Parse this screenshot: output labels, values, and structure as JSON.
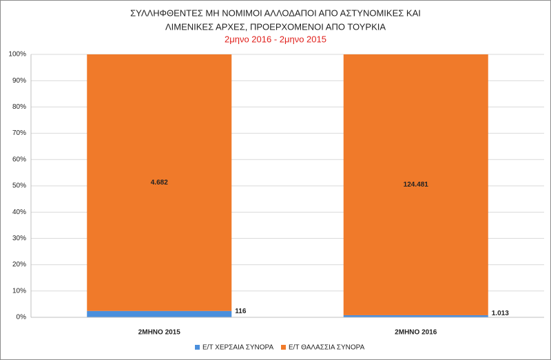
{
  "chart_data": {
    "type": "stacked_percent_bar",
    "title_lines": [
      "ΣΥΛΛΗΦΘΕΝΤΕΣ ΜΗ ΝΟΜΙΜΟΙ ΑΛΛΟΔΑΠΟΙ ΑΠΟ ΑΣΤΥΝΟΜΙΚΕΣ ΚΑΙ",
      "ΛΙΜΕΝΙΚΕΣ ΑΡΧΕΣ, ΠΡΟΕΡΧΟΜΕΝΟΙ ΑΠΟ ΤΟΥΡΚΙΑ"
    ],
    "subtitle": "2μηνο 2016 - 2μηνο 2015",
    "categories": [
      "2ΜΗΝΟ 2015",
      "2ΜΗΝΟ 2016"
    ],
    "series": [
      {
        "name": "Ε/Τ ΧΕΡΣΑΙΑ ΣΥΝΟΡΑ",
        "color": "#4a8fdc",
        "values": [
          116,
          1013
        ],
        "value_labels": [
          "116",
          "1.013"
        ]
      },
      {
        "name": "Ε/Τ  ΘΑΛΑΣΣΙΑ ΣΥΝΟΡΑ",
        "color": "#f07a2a",
        "values": [
          4682,
          124481
        ],
        "value_labels": [
          "4.682",
          "124.481"
        ]
      }
    ],
    "ylim": [
      0,
      100
    ],
    "yticks": [
      {
        "value": 0,
        "label": "0%"
      },
      {
        "value": 10,
        "label": "10%"
      },
      {
        "value": 20,
        "label": "20%"
      },
      {
        "value": 30,
        "label": "30%"
      },
      {
        "value": 40,
        "label": "40%"
      },
      {
        "value": 50,
        "label": "50%"
      },
      {
        "value": 60,
        "label": "60%"
      },
      {
        "value": 70,
        "label": "70%"
      },
      {
        "value": 80,
        "label": "80%"
      },
      {
        "value": 90,
        "label": "90%"
      },
      {
        "value": 100,
        "label": "100%"
      }
    ],
    "grid": true,
    "legend": "bottom"
  }
}
